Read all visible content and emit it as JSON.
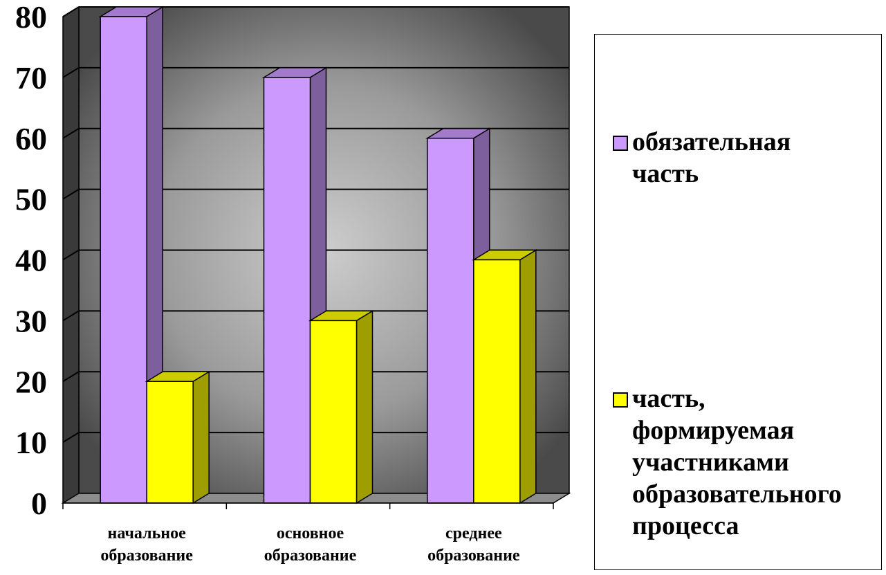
{
  "chart_data": {
    "type": "bar",
    "categories": [
      [
        "начальное",
        "образование"
      ],
      [
        "основное",
        "образование"
      ],
      [
        "среднее",
        "образование"
      ]
    ],
    "series": [
      {
        "name": "обязательная часть",
        "values": [
          80,
          70,
          60
        ],
        "color": "#cc99ff"
      },
      {
        "name": "часть, формируемая участниками образовательного процесса",
        "values": [
          20,
          30,
          40
        ],
        "color": "#ffff00"
      }
    ],
    "ylim": [
      0,
      80
    ],
    "yticks": [
      "0",
      "10",
      "20",
      "30",
      "40",
      "50",
      "60",
      "70",
      "80"
    ],
    "grid": true,
    "three_d": true,
    "legend_position": "right"
  },
  "legend": {
    "items": [
      {
        "lines": [
          "обязательная",
          "часть"
        ],
        "color": "#cc99ff"
      },
      {
        "lines": [
          "часть,",
          "формируемая",
          "участниками",
          "образовательного",
          "процесса"
        ],
        "color": "#ffff00"
      }
    ]
  }
}
